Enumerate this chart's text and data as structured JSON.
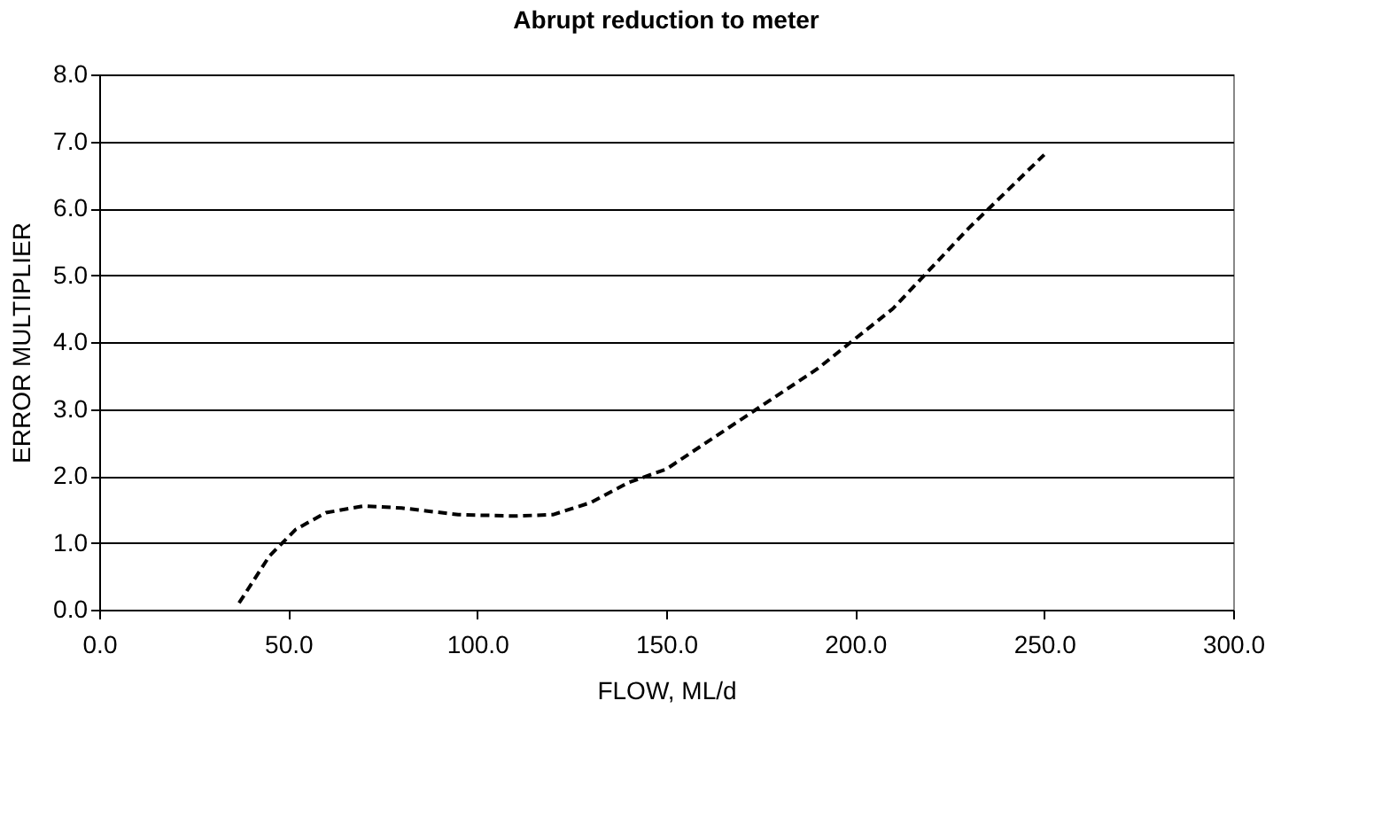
{
  "chart_data": {
    "type": "line",
    "title": "Abrupt reduction to meter",
    "xlabel": "FLOW, ML/d",
    "ylabel": "ERROR MULTIPLIER",
    "x": [
      37,
      45,
      52,
      60,
      70,
      80,
      95,
      110,
      120,
      130,
      140,
      150,
      170,
      190,
      210,
      230,
      250
    ],
    "series": [
      {
        "color": "#000000",
        "values": [
          0.1,
          0.8,
          1.2,
          1.45,
          1.55,
          1.52,
          1.42,
          1.4,
          1.42,
          1.6,
          1.9,
          2.1,
          2.85,
          3.6,
          4.5,
          5.7,
          6.8
        ]
      }
    ],
    "xlim": [
      0,
      300
    ],
    "ylim": [
      0,
      8
    ],
    "xticks": [
      {
        "value": 0,
        "label": "0.0"
      },
      {
        "value": 50,
        "label": "50.0"
      },
      {
        "value": 100,
        "label": "100.0"
      },
      {
        "value": 150,
        "label": "150.0"
      },
      {
        "value": 200,
        "label": "200.0"
      },
      {
        "value": 250,
        "label": "250.0"
      },
      {
        "value": 300,
        "label": "300.0"
      }
    ],
    "yticks": [
      {
        "value": 0,
        "label": "0.0"
      },
      {
        "value": 1,
        "label": "1.0"
      },
      {
        "value": 2,
        "label": "2.0"
      },
      {
        "value": 3,
        "label": "3.0"
      },
      {
        "value": 4,
        "label": "4.0"
      },
      {
        "value": 5,
        "label": "5.0"
      },
      {
        "value": 6,
        "label": "6.0"
      },
      {
        "value": 7,
        "label": "7.0"
      },
      {
        "value": 8,
        "label": "8.0"
      }
    ],
    "grid": "y",
    "line_style": "dashed",
    "marker": "none"
  }
}
